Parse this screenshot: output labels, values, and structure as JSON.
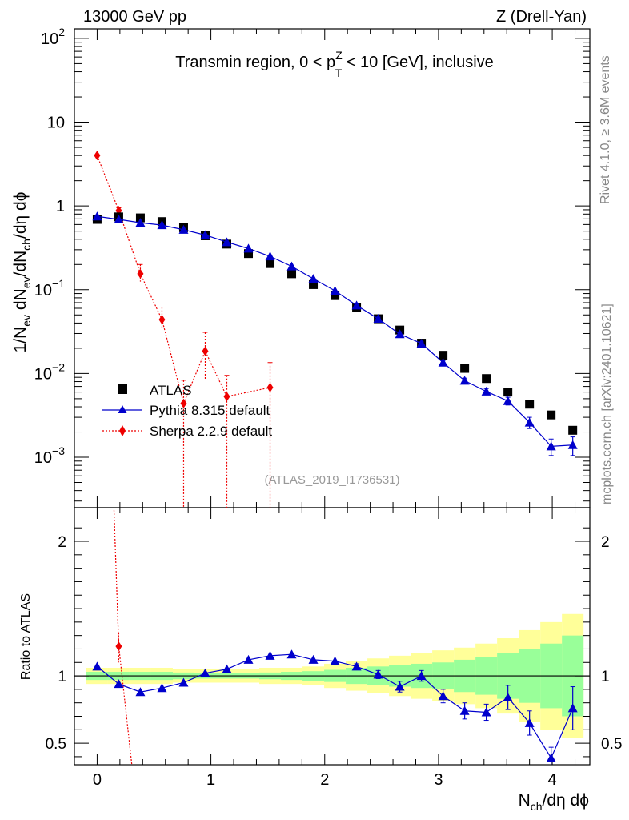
{
  "header": {
    "left": "13000 GeV pp",
    "right": "Z (Drell-Yan)"
  },
  "side_labels": {
    "rivet": "Rivet 4.1.0, ≥ 3.6M events",
    "mcplots": "mcplots.cern.ch [arXiv:2401.10621]"
  },
  "chart_data": {
    "type": "scatter",
    "title": {
      "prefix": "Transmin region, 0 < p",
      "sup": "Z",
      "sub": "T",
      "suffix": " < 10 [GeV], inclusive"
    },
    "analysis_tag": "(ATLAS_2019_I1736531)",
    "xlabel": {
      "main": "N",
      "sub": "ch",
      "rest": "/dη dϕ"
    },
    "ylabel": {
      "p1": "1/N",
      "s1": "ev",
      "p2": " dN",
      "s2": "ev",
      "p3": "/dN",
      "s3": "ch",
      "p4": "/dη dϕ"
    },
    "ratio_ylabel": "Ratio to ATLAS",
    "xlim": [
      -0.2,
      4.33
    ],
    "ylim": [
      0.00025,
      130
    ],
    "ratio_ylim": [
      0.34,
      2.25
    ],
    "x_ticks": [
      "0",
      "1",
      "2",
      "3",
      "4"
    ],
    "y_ticks": [
      {
        "v": 0.001,
        "base": "10",
        "exp": "−3"
      },
      {
        "v": 0.01,
        "base": "10",
        "exp": "−2"
      },
      {
        "v": 0.1,
        "base": "10",
        "exp": "−1"
      },
      {
        "v": 1,
        "base": "1",
        "exp": ""
      },
      {
        "v": 10,
        "base": "10",
        "exp": ""
      },
      {
        "v": 100,
        "base": "10",
        "exp": "2"
      }
    ],
    "ratio_ticks": [
      "0.5",
      "1",
      "2"
    ],
    "legend": [
      {
        "label": "ATLAS",
        "marker": "square"
      },
      {
        "label": "Pythia 8.315 default",
        "marker": "triangle"
      },
      {
        "label": "Sherpa 2.2.9 default",
        "marker": "diamond"
      }
    ],
    "series": [
      {
        "name": "ATLAS",
        "color": "#000000",
        "x": [
          0,
          0.19,
          0.38,
          0.57,
          0.76,
          0.95,
          1.14,
          1.33,
          1.52,
          1.71,
          1.9,
          2.09,
          2.28,
          2.47,
          2.66,
          2.85,
          3.04,
          3.23,
          3.42,
          3.61,
          3.8,
          3.99,
          4.18
        ],
        "y": [
          0.69,
          0.74,
          0.72,
          0.65,
          0.55,
          0.44,
          0.35,
          0.27,
          0.205,
          0.155,
          0.115,
          0.085,
          0.062,
          0.045,
          0.033,
          0.023,
          0.0165,
          0.0115,
          0.0087,
          0.006,
          0.0043,
          0.0032,
          0.0021
        ]
      },
      {
        "name": "Pythia 8.315 default",
        "color": "#0000cc",
        "x": [
          0,
          0.19,
          0.38,
          0.57,
          0.76,
          0.95,
          1.14,
          1.33,
          1.52,
          1.71,
          1.9,
          2.09,
          2.28,
          2.47,
          2.66,
          2.85,
          3.04,
          3.23,
          3.42,
          3.61,
          3.8,
          3.99,
          4.18
        ],
        "y": [
          0.75,
          0.69,
          0.63,
          0.59,
          0.52,
          0.45,
          0.37,
          0.31,
          0.25,
          0.19,
          0.135,
          0.097,
          0.065,
          0.045,
          0.0295,
          0.0228,
          0.0135,
          0.0082,
          0.0061,
          0.0047,
          0.0026,
          0.00135,
          0.0014
        ],
        "yerr": [
          0,
          0,
          0,
          0,
          0,
          0,
          0,
          0,
          0,
          0,
          0,
          0,
          0,
          0.002,
          0.002,
          0.001,
          0.0008,
          0.0006,
          0.0005,
          0.0005,
          0.0004,
          0.0003,
          0.00035
        ],
        "ratio": [
          1.07,
          0.94,
          0.88,
          0.91,
          0.95,
          1.02,
          1.05,
          1.12,
          1.15,
          1.16,
          1.12,
          1.11,
          1.07,
          1.01,
          0.92,
          1.0,
          0.85,
          0.74,
          0.73,
          0.84,
          0.65,
          0.39,
          0.76
        ],
        "ratio_err": [
          0,
          0,
          0,
          0,
          0,
          0,
          0,
          0,
          0,
          0,
          0,
          0,
          0.02,
          0.03,
          0.04,
          0.04,
          0.05,
          0.06,
          0.06,
          0.09,
          0.09,
          0.08,
          0.16
        ]
      },
      {
        "name": "Sherpa 2.2.9 default",
        "color": "#ee0000",
        "x": [
          0,
          0.19,
          0.38,
          0.57,
          0.76,
          0.95,
          1.14,
          1.33,
          1.52
        ],
        "y": [
          4.0,
          0.88,
          0.155,
          0.044,
          0.0044,
          0.0185,
          0.0053,
          null,
          0.0068
        ],
        "y_hi": [
          4.0,
          0.95,
          0.2,
          0.062,
          0.0083,
          0.031,
          0.0095,
          null,
          0.0135
        ],
        "y_lo": [
          4.0,
          0.8,
          0.125,
          0.035,
          1e-05,
          0.0085,
          1e-05,
          null,
          1e-05
        ],
        "ratio": [
          5.8,
          1.22
        ]
      }
    ],
    "uncertainty_bands": {
      "yellow_half": [
        0.06,
        0.06,
        0.06,
        0.06,
        0.05,
        0.05,
        0.05,
        0.05,
        0.06,
        0.06,
        0.07,
        0.09,
        0.11,
        0.13,
        0.15,
        0.17,
        0.19,
        0.21,
        0.24,
        0.28,
        0.34,
        0.4,
        0.46
      ],
      "green_half": [
        0.03,
        0.03,
        0.03,
        0.03,
        0.025,
        0.02,
        0.02,
        0.02,
        0.025,
        0.03,
        0.035,
        0.045,
        0.06,
        0.07,
        0.08,
        0.09,
        0.1,
        0.12,
        0.14,
        0.17,
        0.2,
        0.24,
        0.3
      ]
    }
  }
}
